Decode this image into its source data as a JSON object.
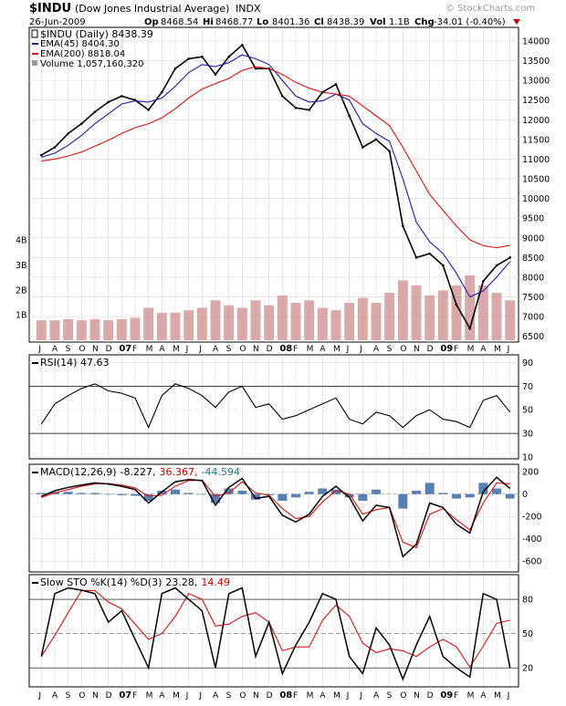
{
  "header": {
    "symbol": "$INDU",
    "name": "(Dow Jones Industrial Average)",
    "exchange": "INDX",
    "date": "26-Jun-2009",
    "open_label": "Op",
    "open": "8468.54",
    "high_label": "Hi",
    "high": "8468.77",
    "low_label": "Lo",
    "low": "8401.36",
    "close_label": "Cl",
    "close": "8438.39",
    "vol_label": "Vol",
    "vol": "1.1B",
    "chg_label": "Chg",
    "chg": "-34.01 (-0.40%)",
    "watermark": "© StockCharts.com"
  },
  "legend": {
    "main": "$INDU (Daily) 8438.39",
    "ema45": "EMA(45) 8404.30",
    "ema200": "EMA(200) 8818.04",
    "volume": "Volume 1,057,160,320",
    "rsi": "RSI(14) 47.63",
    "macd_prefix": "MACD(12,26,9)",
    "macd_value": "-8.227,",
    "macd_signal": "36.367,",
    "macd_hist": "-44.594",
    "sto_prefix": "Slow STO %K(14) %D(3)",
    "sto_k": "23.28,",
    "sto_d": "14.49"
  },
  "colors": {
    "price": "#000000",
    "ema45": "#1a1aa8",
    "ema200": "#dd1111",
    "volume": "#d49a9a",
    "macd_hist": "#3b6aa8",
    "signal": "#dd1111",
    "accent_green": "#5c7f5c",
    "grid": "#d8d8d8"
  },
  "x_axis": {
    "labels": [
      "J",
      "A",
      "S",
      "O",
      "N",
      "D",
      "07",
      "F",
      "M",
      "A",
      "M",
      "J",
      "J",
      "A",
      "S",
      "O",
      "N",
      "D",
      "08",
      "F",
      "M",
      "A",
      "M",
      "J",
      "J",
      "A",
      "S",
      "O",
      "N",
      "D",
      "09",
      "F",
      "M",
      "A",
      "M",
      "J"
    ],
    "bold": [
      "07",
      "08",
      "09"
    ]
  },
  "chart_data": [
    {
      "type": "line",
      "title": "$INDU (Dow Jones Industrial Average)",
      "y_axis": "right",
      "ylim": [
        6400,
        14300
      ],
      "y_ticks": [
        6500,
        7000,
        7500,
        8000,
        8500,
        9000,
        9500,
        10000,
        10500,
        11000,
        11500,
        12000,
        12500,
        13000,
        13500,
        14000
      ],
      "x": [
        "Jul-06",
        "Aug-06",
        "Sep-06",
        "Oct-06",
        "Nov-06",
        "Dec-06",
        "Jan-07",
        "Feb-07",
        "Mar-07",
        "Apr-07",
        "May-07",
        "Jun-07",
        "Jul-07",
        "Aug-07",
        "Sep-07",
        "Oct-07",
        "Nov-07",
        "Dec-07",
        "Jan-08",
        "Feb-08",
        "Mar-08",
        "Apr-08",
        "May-08",
        "Jun-08",
        "Jul-08",
        "Aug-08",
        "Sep-08",
        "Oct-08",
        "Nov-08",
        "Dec-08",
        "Jan-09",
        "Feb-09",
        "Mar-09",
        "Apr-09",
        "May-09",
        "Jun-09"
      ],
      "series": [
        {
          "name": "$INDU (Daily)",
          "values": [
            11100,
            11300,
            11650,
            11900,
            12200,
            12450,
            12600,
            12500,
            12250,
            12700,
            13300,
            13550,
            13600,
            13150,
            13600,
            13900,
            13300,
            13300,
            12600,
            12300,
            12250,
            12700,
            12900,
            12100,
            11300,
            11500,
            11200,
            9300,
            8500,
            8600,
            8300,
            7300,
            6700,
            7900,
            8300,
            8500
          ]
        },
        {
          "name": "EMA(45)",
          "values": [
            11050,
            11150,
            11350,
            11600,
            11900,
            12150,
            12400,
            12480,
            12450,
            12550,
            12850,
            13200,
            13400,
            13350,
            13450,
            13650,
            13550,
            13400,
            13000,
            12600,
            12450,
            12480,
            12650,
            12500,
            11900,
            11650,
            11450,
            10500,
            9400,
            8900,
            8600,
            8100,
            7500,
            7650,
            8000,
            8400
          ]
        },
        {
          "name": "EMA(200)",
          "values": [
            10950,
            11000,
            11080,
            11180,
            11330,
            11480,
            11650,
            11800,
            11900,
            12050,
            12280,
            12550,
            12780,
            12920,
            13050,
            13250,
            13350,
            13300,
            13150,
            12950,
            12800,
            12700,
            12650,
            12600,
            12350,
            12100,
            11850,
            11300,
            10700,
            10100,
            9700,
            9300,
            8950,
            8800,
            8750,
            8810
          ]
        }
      ]
    },
    {
      "type": "bar",
      "title": "Volume",
      "y_axis": "left",
      "ylim": [
        0,
        4500000000
      ],
      "y_ticks": [
        "1B",
        "2B",
        "3B",
        "4B"
      ],
      "values_b": [
        0.8,
        0.8,
        0.85,
        0.8,
        0.85,
        0.8,
        0.85,
        0.9,
        1.3,
        1.1,
        1.1,
        1.2,
        1.3,
        1.6,
        1.4,
        1.3,
        1.6,
        1.4,
        1.8,
        1.5,
        1.6,
        1.3,
        1.2,
        1.5,
        1.7,
        1.5,
        1.9,
        2.4,
        2.2,
        1.8,
        2.0,
        2.2,
        2.6,
        2.2,
        1.9,
        1.6
      ]
    },
    {
      "type": "line",
      "title": "RSI(14)",
      "ylim": [
        10,
        95
      ],
      "y_ticks": [
        10,
        30,
        50,
        70,
        90
      ],
      "values": [
        38,
        55,
        62,
        68,
        72,
        66,
        64,
        60,
        35,
        62,
        72,
        68,
        62,
        52,
        65,
        70,
        52,
        55,
        42,
        45,
        50,
        55,
        60,
        42,
        38,
        48,
        45,
        35,
        45,
        50,
        42,
        40,
        35,
        58,
        62,
        48
      ]
    },
    {
      "type": "line",
      "title": "MACD(12,26,9)",
      "ylim": [
        -680,
        250
      ],
      "y_ticks": [
        -600,
        -400,
        -200,
        0,
        200
      ],
      "series": [
        {
          "name": "MACD",
          "values": [
            -20,
            30,
            60,
            80,
            100,
            90,
            70,
            40,
            -80,
            20,
            110,
            130,
            120,
            -100,
            60,
            140,
            -40,
            -20,
            -190,
            -250,
            -180,
            -20,
            70,
            -30,
            -240,
            -100,
            -120,
            -560,
            -450,
            -80,
            -120,
            -270,
            -350,
            20,
            150,
            50
          ]
        },
        {
          "name": "Signal",
          "values": [
            -30,
            10,
            40,
            70,
            90,
            95,
            80,
            55,
            -20,
            -10,
            70,
            120,
            125,
            -20,
            10,
            110,
            10,
            -10,
            -130,
            -220,
            -200,
            -70,
            30,
            0,
            -180,
            -140,
            -120,
            -430,
            -480,
            -180,
            -130,
            -230,
            -320,
            -80,
            100,
            90
          ]
        }
      ]
    },
    {
      "type": "line",
      "title": "Slow STO %K(14) %D(3)",
      "ylim": [
        5,
        100
      ],
      "y_ticks": [
        20,
        50,
        80
      ],
      "values": [
        30,
        85,
        90,
        88,
        85,
        60,
        70,
        45,
        20,
        85,
        90,
        80,
        70,
        20,
        85,
        90,
        30,
        60,
        15,
        40,
        60,
        85,
        80,
        30,
        15,
        55,
        40,
        10,
        40,
        65,
        30,
        20,
        12,
        85,
        80,
        20
      ]
    }
  ]
}
